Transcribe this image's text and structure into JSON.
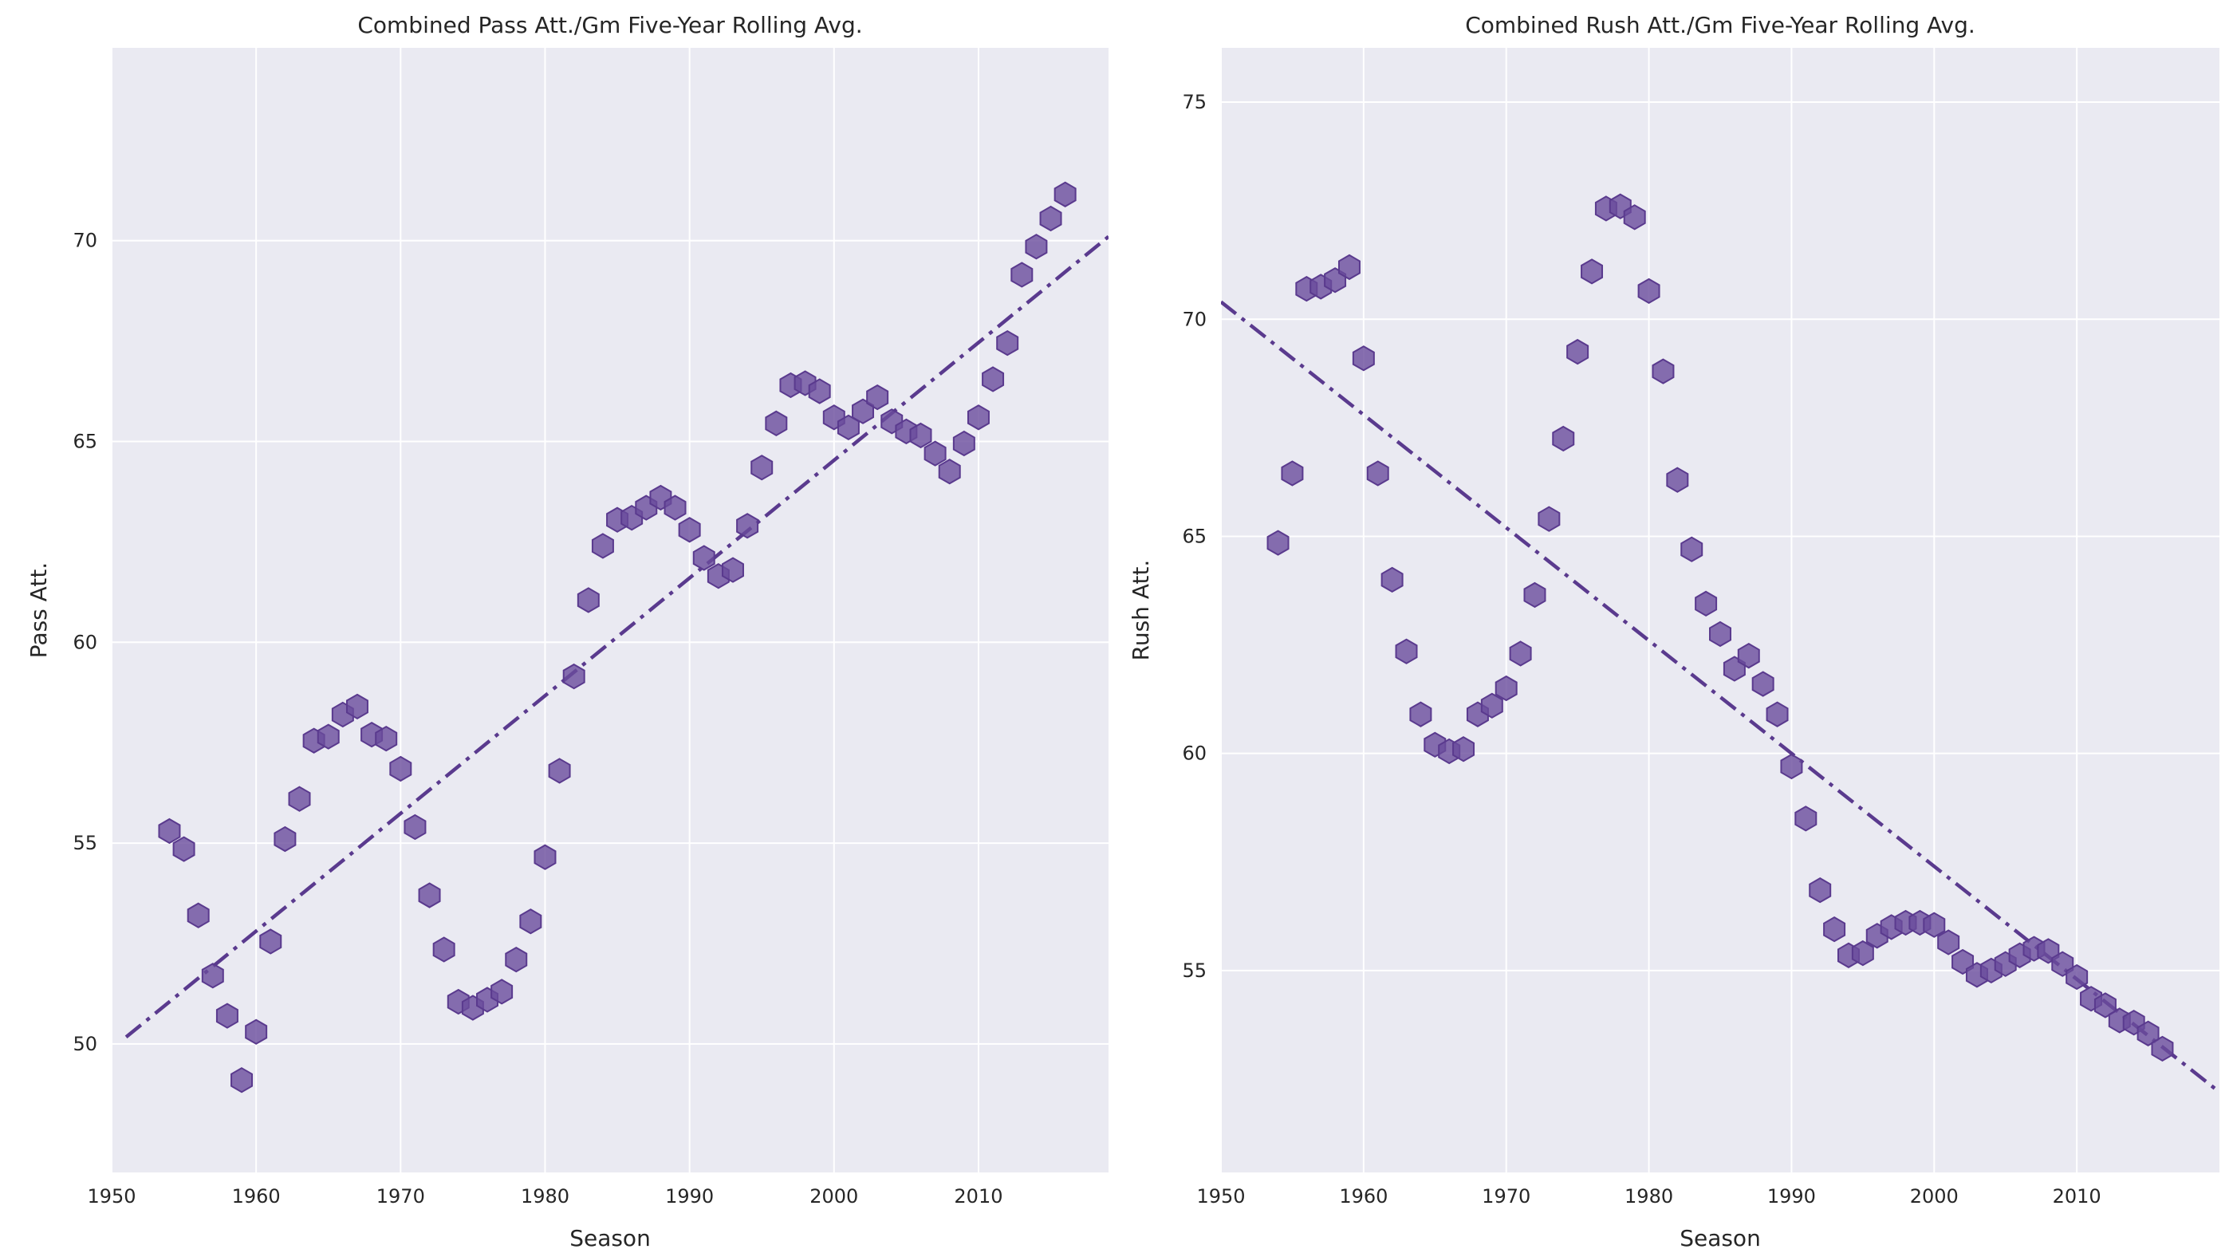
{
  "chart_data": [
    {
      "type": "scatter",
      "title": "Combined Pass Att./Gm Five-Year Rolling Avg.",
      "xlabel": "Season",
      "ylabel": "Pass Att.",
      "xlim": [
        1950,
        2019
      ],
      "ylim": [
        46.8,
        74.8
      ],
      "xticks": [
        1950,
        1960,
        1970,
        1980,
        1990,
        2000,
        2010
      ],
      "yticks": [
        50,
        55,
        60,
        65,
        70
      ],
      "grid": true,
      "marker": "hexagon",
      "color": "#6a4c9c",
      "x": [
        1954,
        1955,
        1956,
        1957,
        1958,
        1959,
        1960,
        1961,
        1962,
        1963,
        1964,
        1965,
        1966,
        1967,
        1968,
        1969,
        1970,
        1971,
        1972,
        1973,
        1974,
        1975,
        1976,
        1977,
        1978,
        1979,
        1980,
        1981,
        1982,
        1983,
        1984,
        1985,
        1986,
        1987,
        1988,
        1989,
        1990,
        1991,
        1992,
        1993,
        1994,
        1995,
        1996,
        1997,
        1998,
        1999,
        2000,
        2001,
        2002,
        2003,
        2004,
        2005,
        2006,
        2007,
        2008,
        2009,
        2010,
        2011,
        2012,
        2013,
        2014,
        2015,
        2016
      ],
      "y": [
        55.3,
        54.85,
        53.2,
        51.7,
        50.7,
        49.1,
        50.3,
        52.55,
        55.1,
        56.1,
        57.55,
        57.65,
        58.2,
        58.4,
        57.7,
        57.6,
        56.85,
        55.4,
        53.7,
        52.35,
        51.05,
        50.9,
        51.1,
        51.3,
        52.1,
        53.05,
        54.65,
        56.8,
        59.15,
        61.05,
        62.4,
        63.05,
        63.1,
        63.35,
        63.6,
        63.35,
        62.8,
        62.1,
        61.65,
        61.8,
        62.9,
        64.35,
        65.45,
        66.4,
        66.45,
        66.25,
        65.6,
        65.35,
        65.75,
        66.1,
        65.5,
        65.25,
        65.15,
        64.7,
        64.25,
        64.95,
        65.6,
        66.55,
        67.45,
        69.15,
        69.85,
        70.55,
        71.15
      ],
      "trendline": {
        "x": [
          1951,
          2019
        ],
        "y": [
          50.17,
          70.1
        ]
      }
    },
    {
      "type": "scatter",
      "title": "Combined Rush Att./Gm Five-Year Rolling Avg.",
      "xlabel": "Season",
      "ylabel": "Rush Att.",
      "xlim": [
        1950,
        2020
      ],
      "ylim": [
        50.35,
        76.25
      ],
      "xticks": [
        1950,
        1960,
        1970,
        1980,
        1990,
        2000,
        2010
      ],
      "yticks": [
        55,
        60,
        65,
        70,
        75
      ],
      "grid": true,
      "marker": "hexagon",
      "color": "#6a4c9c",
      "x": [
        1954,
        1955,
        1956,
        1957,
        1958,
        1959,
        1960,
        1961,
        1962,
        1963,
        1964,
        1965,
        1966,
        1967,
        1968,
        1969,
        1970,
        1971,
        1972,
        1973,
        1974,
        1975,
        1976,
        1977,
        1978,
        1979,
        1980,
        1981,
        1982,
        1983,
        1984,
        1985,
        1986,
        1987,
        1988,
        1989,
        1990,
        1991,
        1992,
        1993,
        1994,
        1995,
        1996,
        1997,
        1998,
        1999,
        2000,
        2001,
        2002,
        2003,
        2004,
        2005,
        2006,
        2007,
        2008,
        2009,
        2010,
        2011,
        2012,
        2013,
        2014,
        2015,
        2016
      ],
      "y": [
        64.85,
        66.45,
        70.7,
        70.75,
        70.9,
        71.2,
        69.1,
        66.45,
        64.0,
        62.35,
        60.9,
        60.2,
        60.05,
        60.1,
        60.9,
        61.1,
        61.5,
        62.3,
        63.65,
        65.4,
        67.25,
        69.25,
        71.1,
        72.55,
        72.6,
        72.35,
        70.65,
        68.8,
        66.3,
        64.7,
        63.45,
        62.75,
        61.95,
        62.25,
        61.6,
        60.9,
        59.7,
        58.5,
        56.85,
        55.95,
        55.35,
        55.4,
        55.8,
        56.0,
        56.1,
        56.1,
        56.05,
        55.65,
        55.2,
        54.9,
        55.0,
        55.15,
        55.35,
        55.5,
        55.45,
        55.15,
        54.85,
        54.35,
        54.2,
        53.85,
        53.8,
        53.55,
        53.2
      ],
      "trendline": {
        "x": [
          1950,
          2020
        ],
        "y": [
          70.4,
          52.2
        ]
      }
    }
  ]
}
